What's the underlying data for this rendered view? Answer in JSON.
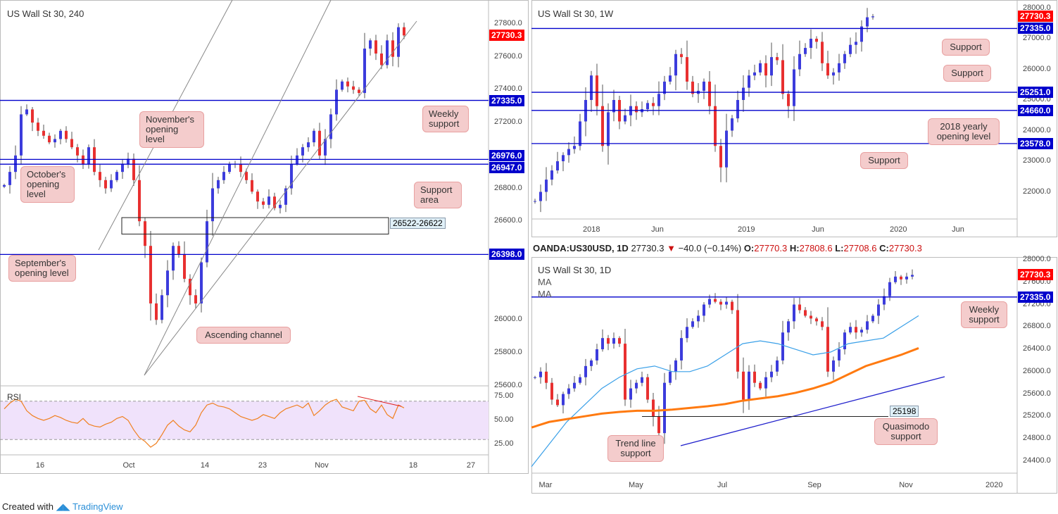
{
  "footer": {
    "created_with": "Created with",
    "brand": "TradingView"
  },
  "colors": {
    "up": "#3c3cdc",
    "down": "#e83030",
    "level": "#0000cc",
    "price_tag": "#ff0000",
    "ma50": "#3aa0e8",
    "ma200": "#ff7a10",
    "callout": "#f4cccc"
  },
  "chart_data": [
    {
      "type": "candlestick",
      "title": "US Wall St 30, 240",
      "ylim": [
        25600,
        27900
      ],
      "yticks": [
        "27800.0",
        "27600.0",
        "27400.0",
        "27200.0",
        "26800.0",
        "26600.0",
        "26000.0",
        "25800.0",
        "25600.0"
      ],
      "yticks_values": [
        27800,
        27600,
        27400,
        27200,
        26800,
        26600,
        26000,
        25800,
        25600
      ],
      "xticks": [
        "16",
        "Oct",
        "14",
        "23",
        "Nov",
        "18",
        "27"
      ],
      "closes": [
        26820,
        26900,
        27000,
        27250,
        27280,
        27200,
        27150,
        27120,
        27080,
        27100,
        27150,
        27100,
        27050,
        27000,
        26950,
        27050,
        26900,
        26850,
        26800,
        26850,
        26900,
        26950,
        26980,
        26850,
        26600,
        26450,
        26100,
        26000,
        26150,
        26300,
        26450,
        26400,
        26250,
        26150,
        26100,
        26350,
        26600,
        26800,
        26850,
        26900,
        26950,
        26950,
        26900,
        26850,
        26780,
        26720,
        26700,
        26750,
        26680,
        26700,
        26800,
        26950,
        27000,
        27050,
        27080,
        27150,
        27000,
        27100,
        27250,
        27400,
        27450,
        27420,
        27400,
        27380,
        27650,
        27700,
        27620,
        27550,
        27700,
        27600,
        27780,
        27730
      ],
      "levels": [
        {
          "value": 27335,
          "label": "27335.0"
        },
        {
          "value": 26976,
          "label": "26976.0"
        },
        {
          "value": 26947,
          "label": "26947.0"
        },
        {
          "value": 26398,
          "label": "26398.0"
        }
      ],
      "last_price": "27730.3",
      "zone": {
        "low": 26522,
        "high": 26622,
        "label": "26522-26622"
      },
      "callouts": [
        "November's opening level",
        "October's opening level",
        "Weekly support",
        "Support area",
        "September's opening level",
        "Ascending channel"
      ],
      "rsi": {
        "label": "RSI",
        "ylim": [
          15,
          85
        ],
        "yticks": [
          "75.00",
          "50.00",
          "25.00"
        ],
        "levels": [
          70,
          30
        ],
        "values": [
          62,
          68,
          72,
          70,
          60,
          55,
          52,
          50,
          52,
          55,
          53,
          50,
          48,
          47,
          52,
          46,
          44,
          43,
          46,
          48,
          52,
          54,
          50,
          40,
          32,
          28,
          22,
          26,
          35,
          45,
          50,
          44,
          40,
          38,
          45,
          58,
          66,
          68,
          65,
          64,
          62,
          58,
          54,
          52,
          50,
          52,
          56,
          54,
          52,
          58,
          62,
          64,
          66,
          63,
          68,
          55,
          60,
          66,
          70,
          72,
          64,
          62,
          60,
          70,
          71,
          62,
          58,
          66,
          56,
          52,
          66,
          63
        ]
      }
    },
    {
      "type": "candlestick",
      "title": "US Wall St 30, 1W",
      "ylim": [
        21000,
        28200
      ],
      "yticks": [
        "28000.0",
        "27000.0",
        "26000.0",
        "25000.0",
        "24000.0",
        "23000.0",
        "22000.0"
      ],
      "yticks_values": [
        28000,
        27000,
        26000,
        25000,
        24000,
        23000,
        22000
      ],
      "xticks": [
        "2018",
        "Jun",
        "2019",
        "Jun",
        "2020",
        "Jun"
      ],
      "closes": [
        21700,
        22000,
        22400,
        22700,
        23000,
        23200,
        23400,
        23500,
        24300,
        25000,
        25800,
        24800,
        23500,
        24600,
        25000,
        24300,
        24500,
        24800,
        24600,
        24700,
        24900,
        24800,
        25200,
        25600,
        25800,
        26500,
        26400,
        25600,
        25200,
        25300,
        25600,
        24800,
        23500,
        22800,
        24000,
        24400,
        25000,
        25400,
        25800,
        25900,
        26200,
        25800,
        26400,
        26300,
        25200,
        24800,
        26000,
        26500,
        26700,
        27000,
        26900,
        26200,
        25800,
        25900,
        26200,
        26500,
        26800,
        26900,
        27400,
        27700,
        27730
      ],
      "levels": [
        {
          "value": 27335,
          "label": "27335.0"
        },
        {
          "value": 25251,
          "label": "25251.0"
        },
        {
          "value": 24660,
          "label": "24660.0"
        },
        {
          "value": 23578,
          "label": "23578.0"
        }
      ],
      "last_price": "27730.3",
      "callouts": [
        "Support",
        "Support",
        "2018 yearly opening level",
        "Support"
      ]
    },
    {
      "type": "candlestick",
      "title": "US Wall St 30, 1D",
      "ylim": [
        24200,
        28050
      ],
      "header": {
        "symbol": "OANDA:US30USD, 1D",
        "last": "27730.3",
        "change": "−40.0 (−0.14%)",
        "o_label": "O:",
        "o": "27770.3",
        "h_label": "H:",
        "h": "27808.6",
        "l_label": "L:",
        "l": "27708.6",
        "c_label": "C:",
        "c": "27730.3"
      },
      "ma_labels": [
        "MA",
        "MA"
      ],
      "yticks": [
        "28000.0",
        "27600.0",
        "27200.0",
        "26800.0",
        "26400.0",
        "26000.0",
        "25600.0",
        "25200.0",
        "24800.0",
        "24400.0"
      ],
      "yticks_values": [
        28000,
        27600,
        27200,
        26800,
        26400,
        26000,
        25600,
        25200,
        24800,
        24400
      ],
      "xticks": [
        "Mar",
        "May",
        "Jul",
        "Sep",
        "Nov",
        "2020"
      ],
      "closes": [
        25900,
        26000,
        25800,
        25500,
        25400,
        25600,
        25700,
        25800,
        25900,
        26100,
        26200,
        26400,
        26600,
        26500,
        26600,
        26500,
        25500,
        25700,
        25800,
        25900,
        25500,
        25200,
        24900,
        25800,
        26000,
        26200,
        26600,
        26800,
        26900,
        27000,
        27200,
        27300,
        27250,
        27200,
        27250,
        27100,
        26000,
        25500,
        26000,
        25800,
        25700,
        25900,
        26000,
        26200,
        26700,
        26900,
        27200,
        27100,
        27000,
        26950,
        26900,
        26800,
        26000,
        26200,
        26400,
        26700,
        26800,
        26700,
        26750,
        26900,
        27000,
        27200,
        27350,
        27600,
        27700,
        27650,
        27700,
        27730
      ],
      "ma50": [
        24300,
        24700,
        25100,
        25400,
        25700,
        25900,
        26050,
        26100,
        26000,
        26000,
        26100,
        26300,
        26500,
        26550,
        26500,
        26400,
        26300,
        26350,
        26500,
        26550,
        26600,
        26800,
        27000
      ],
      "ma200": [
        25000,
        25100,
        25150,
        25200,
        25250,
        25280,
        25300,
        25300,
        25320,
        25350,
        25380,
        25420,
        25480,
        25520,
        25560,
        25620,
        25700,
        25800,
        25950,
        26100,
        26200,
        26300,
        26420
      ],
      "levels": [
        {
          "value": 27335,
          "label": "27335.0"
        }
      ],
      "qm": {
        "value": 25198,
        "label": "25198"
      },
      "last_price": "27730.3",
      "callouts": [
        "Weekly support",
        "Quasimodo support",
        "Trend line support"
      ]
    }
  ]
}
